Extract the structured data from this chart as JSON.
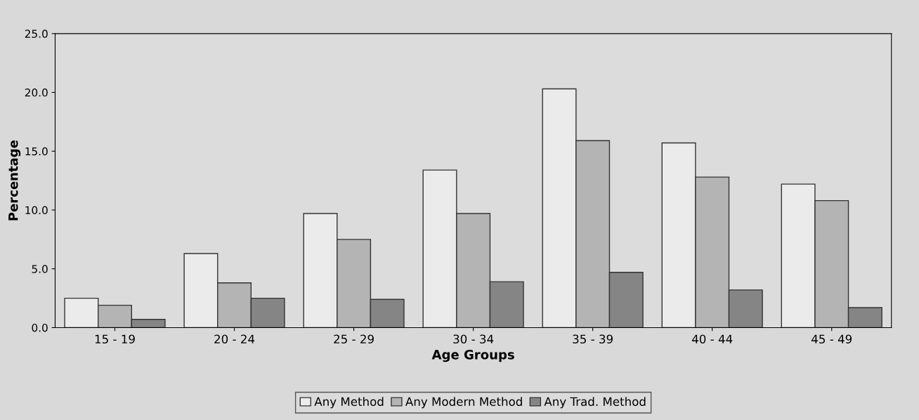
{
  "chart_data": {
    "type": "bar",
    "xlabel": "Age Groups",
    "ylabel": "Percentage",
    "categories": [
      "15 - 19",
      "20 - 24",
      "25 - 29",
      "30 - 34",
      "35 - 39",
      "40 - 44",
      "45 - 49"
    ],
    "series": [
      {
        "name": "Any Method",
        "color": "#ebebeb",
        "values": [
          2.5,
          6.3,
          9.7,
          13.4,
          20.3,
          15.7,
          12.2
        ]
      },
      {
        "name": "Any Modern Method",
        "color": "#b4b4b4",
        "values": [
          1.9,
          3.8,
          7.5,
          9.7,
          15.9,
          12.8,
          10.8
        ]
      },
      {
        "name": "Any Trad. Method",
        "color": "#858585",
        "values": [
          0.7,
          2.5,
          2.4,
          3.9,
          4.7,
          3.2,
          1.7
        ]
      }
    ],
    "ylim": [
      0,
      25
    ],
    "yticks": [
      {
        "value": 0,
        "label": "0.0"
      },
      {
        "value": 5,
        "label": "5.0"
      },
      {
        "value": 10,
        "label": "10.0"
      },
      {
        "value": 15,
        "label": "15.0"
      },
      {
        "value": 20,
        "label": "20.0"
      },
      {
        "value": 25,
        "label": "25.0"
      }
    ],
    "legend": "bottom",
    "grid": false
  }
}
